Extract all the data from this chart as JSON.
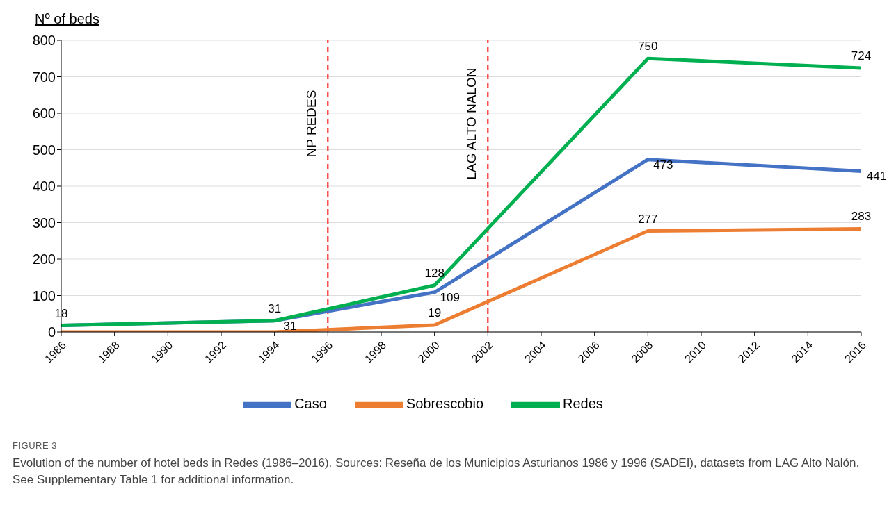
{
  "chart_data": {
    "type": "line",
    "title": "FIGURE 3",
    "ylabel": "Nº of beds",
    "x": [
      1986,
      1994,
      2000,
      2008,
      2016
    ],
    "series": [
      {
        "name": "Caso",
        "color": "#4472c4",
        "values": [
          18,
          31,
          109,
          473,
          441
        ],
        "value_labels": [
          null,
          "31",
          "109",
          "473",
          "441"
        ]
      },
      {
        "name": "Sobrescobio",
        "color": "#ed7d31",
        "values": [
          0,
          0,
          19,
          277,
          283
        ],
        "value_labels": [
          null,
          null,
          "19",
          "277",
          "283"
        ]
      },
      {
        "name": "Redes",
        "color": "#00b050",
        "values": [
          18,
          31,
          128,
          750,
          724
        ],
        "value_labels": [
          "18",
          "31",
          "128",
          "750",
          "724"
        ]
      }
    ],
    "xlim": [
      1986,
      2016
    ],
    "xticks": [
      1986,
      1988,
      1990,
      1992,
      1994,
      1996,
      1998,
      2000,
      2002,
      2004,
      2006,
      2008,
      2010,
      2012,
      2014,
      2016
    ],
    "ylim": [
      0,
      800
    ],
    "yticks": [
      0,
      100,
      200,
      300,
      400,
      500,
      600,
      700,
      800
    ],
    "ref_lines": [
      {
        "axis": "x",
        "value": 1996,
        "label": "NP REDES",
        "color": "#ff0000",
        "line_style": "dashed"
      },
      {
        "axis": "x",
        "value": 2002,
        "label": "LAG ALTO NALON",
        "color": "#ff0000",
        "line_style": "dashed"
      }
    ],
    "annotations": [
      "Evolution of the number of hotel beds in Redes (1986–2016). Sources: Reseña de los Municipios Asturianos 1986 y 1996 (SADEI), datasets from LAG Alto Nalón. See Supplementary Table 1 for additional information."
    ],
    "grid": "y",
    "legend": "bottom",
    "marker": "none",
    "line_style": "solid"
  }
}
